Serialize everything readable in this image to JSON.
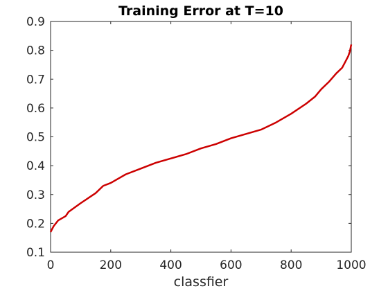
{
  "chart_data": {
    "type": "line",
    "title": "Training Error at T=10",
    "xlabel": "classfier",
    "ylabel": "",
    "xlim": [
      0,
      1000
    ],
    "ylim": [
      0.1,
      0.9
    ],
    "xticks": [
      0,
      200,
      400,
      600,
      800,
      1000
    ],
    "xtick_labels": [
      "0",
      "200",
      "400",
      "600",
      "800",
      "1000"
    ],
    "yticks": [
      0.1,
      0.2,
      0.3,
      0.4,
      0.5,
      0.6,
      0.7,
      0.8,
      0.9
    ],
    "ytick_labels": [
      "0.1",
      "0.2",
      "0.3",
      "0.4",
      "0.5",
      "0.6",
      "0.7",
      "0.8",
      "0.9"
    ],
    "grid": false,
    "series": [
      {
        "color": "#cc0000",
        "x": [
          0,
          10,
          25,
          50,
          60,
          100,
          150,
          175,
          200,
          250,
          300,
          350,
          400,
          450,
          500,
          550,
          600,
          650,
          700,
          750,
          800,
          850,
          880,
          900,
          925,
          950,
          970,
          980,
          990,
          995,
          1000
        ],
        "y": [
          0.17,
          0.19,
          0.21,
          0.225,
          0.24,
          0.27,
          0.305,
          0.33,
          0.34,
          0.37,
          0.39,
          0.41,
          0.425,
          0.44,
          0.46,
          0.475,
          0.495,
          0.51,
          0.525,
          0.55,
          0.58,
          0.615,
          0.64,
          0.665,
          0.69,
          0.72,
          0.74,
          0.76,
          0.78,
          0.795,
          0.82
        ]
      }
    ]
  }
}
